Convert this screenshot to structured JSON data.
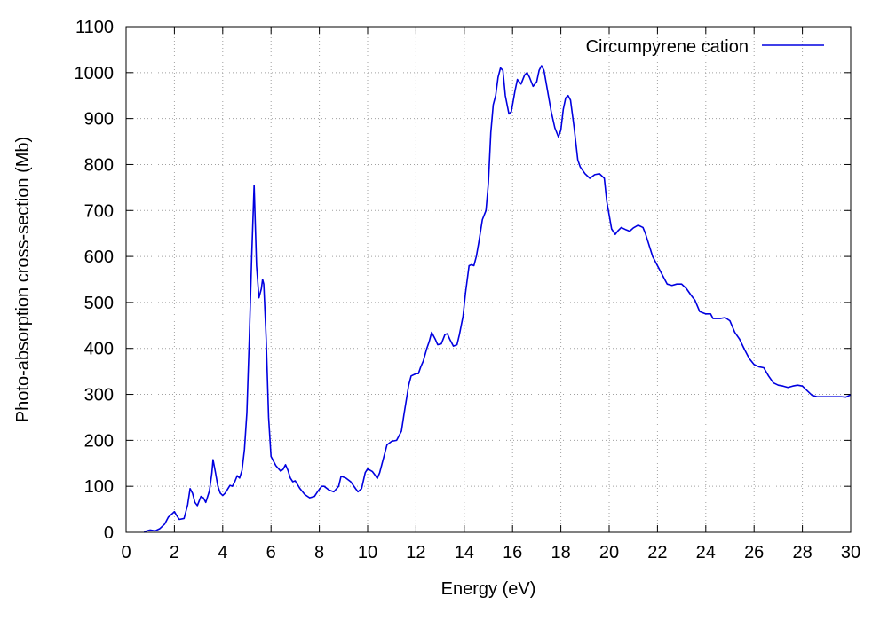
{
  "chart_data": {
    "type": "line",
    "title": "",
    "xlabel": "Energy (eV)",
    "ylabel": "Photo-absorption cross-section (Mb)",
    "xlim": [
      0,
      30
    ],
    "ylim": [
      0,
      1100
    ],
    "x_ticks": [
      0,
      2,
      4,
      6,
      8,
      10,
      12,
      14,
      16,
      18,
      20,
      22,
      24,
      26,
      28,
      30
    ],
    "y_ticks": [
      0,
      100,
      200,
      300,
      400,
      500,
      600,
      700,
      800,
      900,
      1000,
      1100
    ],
    "x_tick_labels": [
      "0",
      "2",
      "4",
      "6",
      "8",
      "10",
      "12",
      "14",
      "16",
      "18",
      "20",
      "22",
      "24",
      "26",
      "28",
      "30"
    ],
    "y_tick_labels": [
      "0",
      "100",
      "200",
      "300",
      "400",
      "500",
      "600",
      "700",
      "800",
      "900",
      "1000",
      "1100"
    ],
    "grid": true,
    "legend_position": "top-right",
    "series": [
      {
        "name": "Circumpyrene cation",
        "color": "#0000e0",
        "points": [
          [
            0.75,
            0
          ],
          [
            0.85,
            3
          ],
          [
            1.0,
            5
          ],
          [
            1.2,
            3
          ],
          [
            1.4,
            8
          ],
          [
            1.6,
            18
          ],
          [
            1.75,
            33
          ],
          [
            1.9,
            40
          ],
          [
            2.0,
            45
          ],
          [
            2.1,
            36
          ],
          [
            2.2,
            28
          ],
          [
            2.4,
            30
          ],
          [
            2.55,
            60
          ],
          [
            2.65,
            95
          ],
          [
            2.75,
            85
          ],
          [
            2.85,
            65
          ],
          [
            2.95,
            58
          ],
          [
            3.1,
            78
          ],
          [
            3.2,
            75
          ],
          [
            3.3,
            65
          ],
          [
            3.45,
            90
          ],
          [
            3.55,
            128
          ],
          [
            3.6,
            158
          ],
          [
            3.7,
            130
          ],
          [
            3.8,
            100
          ],
          [
            3.9,
            85
          ],
          [
            4.0,
            80
          ],
          [
            4.1,
            85
          ],
          [
            4.3,
            102
          ],
          [
            4.4,
            100
          ],
          [
            4.5,
            110
          ],
          [
            4.6,
            123
          ],
          [
            4.7,
            118
          ],
          [
            4.8,
            135
          ],
          [
            4.9,
            180
          ],
          [
            5.0,
            260
          ],
          [
            5.1,
            420
          ],
          [
            5.2,
            600
          ],
          [
            5.3,
            755
          ],
          [
            5.4,
            580
          ],
          [
            5.5,
            510
          ],
          [
            5.6,
            530
          ],
          [
            5.65,
            550
          ],
          [
            5.7,
            540
          ],
          [
            5.8,
            420
          ],
          [
            5.9,
            250
          ],
          [
            6.0,
            165
          ],
          [
            6.2,
            145
          ],
          [
            6.4,
            133
          ],
          [
            6.5,
            137
          ],
          [
            6.6,
            147
          ],
          [
            6.7,
            135
          ],
          [
            6.8,
            118
          ],
          [
            6.9,
            110
          ],
          [
            7.0,
            112
          ],
          [
            7.2,
            95
          ],
          [
            7.4,
            82
          ],
          [
            7.6,
            75
          ],
          [
            7.8,
            78
          ],
          [
            7.95,
            90
          ],
          [
            8.1,
            100
          ],
          [
            8.2,
            100
          ],
          [
            8.4,
            92
          ],
          [
            8.6,
            88
          ],
          [
            8.8,
            100
          ],
          [
            8.9,
            122
          ],
          [
            9.1,
            118
          ],
          [
            9.3,
            110
          ],
          [
            9.5,
            95
          ],
          [
            9.6,
            88
          ],
          [
            9.75,
            95
          ],
          [
            9.9,
            130
          ],
          [
            10.0,
            138
          ],
          [
            10.2,
            132
          ],
          [
            10.3,
            125
          ],
          [
            10.4,
            117
          ],
          [
            10.5,
            130
          ],
          [
            10.7,
            170
          ],
          [
            10.8,
            190
          ],
          [
            11.0,
            198
          ],
          [
            11.2,
            200
          ],
          [
            11.4,
            220
          ],
          [
            11.5,
            255
          ],
          [
            11.7,
            320
          ],
          [
            11.8,
            340
          ],
          [
            12.0,
            345
          ],
          [
            12.1,
            345
          ],
          [
            12.2,
            360
          ],
          [
            12.3,
            372
          ],
          [
            12.45,
            400
          ],
          [
            12.55,
            415
          ],
          [
            12.65,
            435
          ],
          [
            12.8,
            420
          ],
          [
            12.9,
            408
          ],
          [
            13.05,
            410
          ],
          [
            13.2,
            430
          ],
          [
            13.3,
            432
          ],
          [
            13.4,
            420
          ],
          [
            13.55,
            405
          ],
          [
            13.7,
            408
          ],
          [
            13.8,
            430
          ],
          [
            13.95,
            470
          ],
          [
            14.05,
            520
          ],
          [
            14.2,
            580
          ],
          [
            14.3,
            582
          ],
          [
            14.4,
            580
          ],
          [
            14.5,
            600
          ],
          [
            14.6,
            630
          ],
          [
            14.75,
            680
          ],
          [
            14.9,
            700
          ],
          [
            15.0,
            760
          ],
          [
            15.1,
            870
          ],
          [
            15.2,
            930
          ],
          [
            15.3,
            950
          ],
          [
            15.4,
            990
          ],
          [
            15.5,
            1010
          ],
          [
            15.6,
            1005
          ],
          [
            15.7,
            950
          ],
          [
            15.85,
            910
          ],
          [
            15.95,
            915
          ],
          [
            16.1,
            960
          ],
          [
            16.2,
            985
          ],
          [
            16.35,
            975
          ],
          [
            16.5,
            995
          ],
          [
            16.6,
            1000
          ],
          [
            16.7,
            990
          ],
          [
            16.85,
            970
          ],
          [
            17.0,
            980
          ],
          [
            17.1,
            1005
          ],
          [
            17.2,
            1015
          ],
          [
            17.3,
            1005
          ],
          [
            17.45,
            960
          ],
          [
            17.6,
            915
          ],
          [
            17.75,
            880
          ],
          [
            17.9,
            860
          ],
          [
            18.0,
            875
          ],
          [
            18.1,
            920
          ],
          [
            18.2,
            945
          ],
          [
            18.3,
            950
          ],
          [
            18.4,
            940
          ],
          [
            18.55,
            880
          ],
          [
            18.7,
            810
          ],
          [
            18.8,
            795
          ],
          [
            19.0,
            780
          ],
          [
            19.2,
            770
          ],
          [
            19.4,
            778
          ],
          [
            19.6,
            780
          ],
          [
            19.8,
            770
          ],
          [
            19.9,
            720
          ],
          [
            20.0,
            690
          ],
          [
            20.1,
            660
          ],
          [
            20.25,
            648
          ],
          [
            20.35,
            655
          ],
          [
            20.5,
            663
          ],
          [
            20.7,
            658
          ],
          [
            20.85,
            655
          ],
          [
            21.0,
            662
          ],
          [
            21.2,
            668
          ],
          [
            21.4,
            663
          ],
          [
            21.5,
            650
          ],
          [
            21.65,
            625
          ],
          [
            21.8,
            600
          ],
          [
            22.0,
            580
          ],
          [
            22.2,
            560
          ],
          [
            22.4,
            540
          ],
          [
            22.6,
            537
          ],
          [
            22.8,
            540
          ],
          [
            23.0,
            540
          ],
          [
            23.2,
            530
          ],
          [
            23.4,
            515
          ],
          [
            23.55,
            505
          ],
          [
            23.75,
            480
          ],
          [
            24.0,
            475
          ],
          [
            24.2,
            475
          ],
          [
            24.3,
            465
          ],
          [
            24.6,
            465
          ],
          [
            24.8,
            467
          ],
          [
            25.0,
            460
          ],
          [
            25.2,
            435
          ],
          [
            25.4,
            420
          ],
          [
            25.6,
            398
          ],
          [
            25.8,
            378
          ],
          [
            26.0,
            365
          ],
          [
            26.2,
            360
          ],
          [
            26.4,
            358
          ],
          [
            26.6,
            340
          ],
          [
            26.8,
            325
          ],
          [
            27.0,
            320
          ],
          [
            27.2,
            318
          ],
          [
            27.4,
            315
          ],
          [
            27.6,
            318
          ],
          [
            27.8,
            320
          ],
          [
            28.0,
            318
          ],
          [
            28.2,
            308
          ],
          [
            28.4,
            298
          ],
          [
            28.6,
            295
          ],
          [
            28.8,
            295
          ],
          [
            29.2,
            295
          ],
          [
            29.6,
            295
          ],
          [
            29.8,
            294
          ],
          [
            30.0,
            299
          ]
        ]
      }
    ]
  }
}
